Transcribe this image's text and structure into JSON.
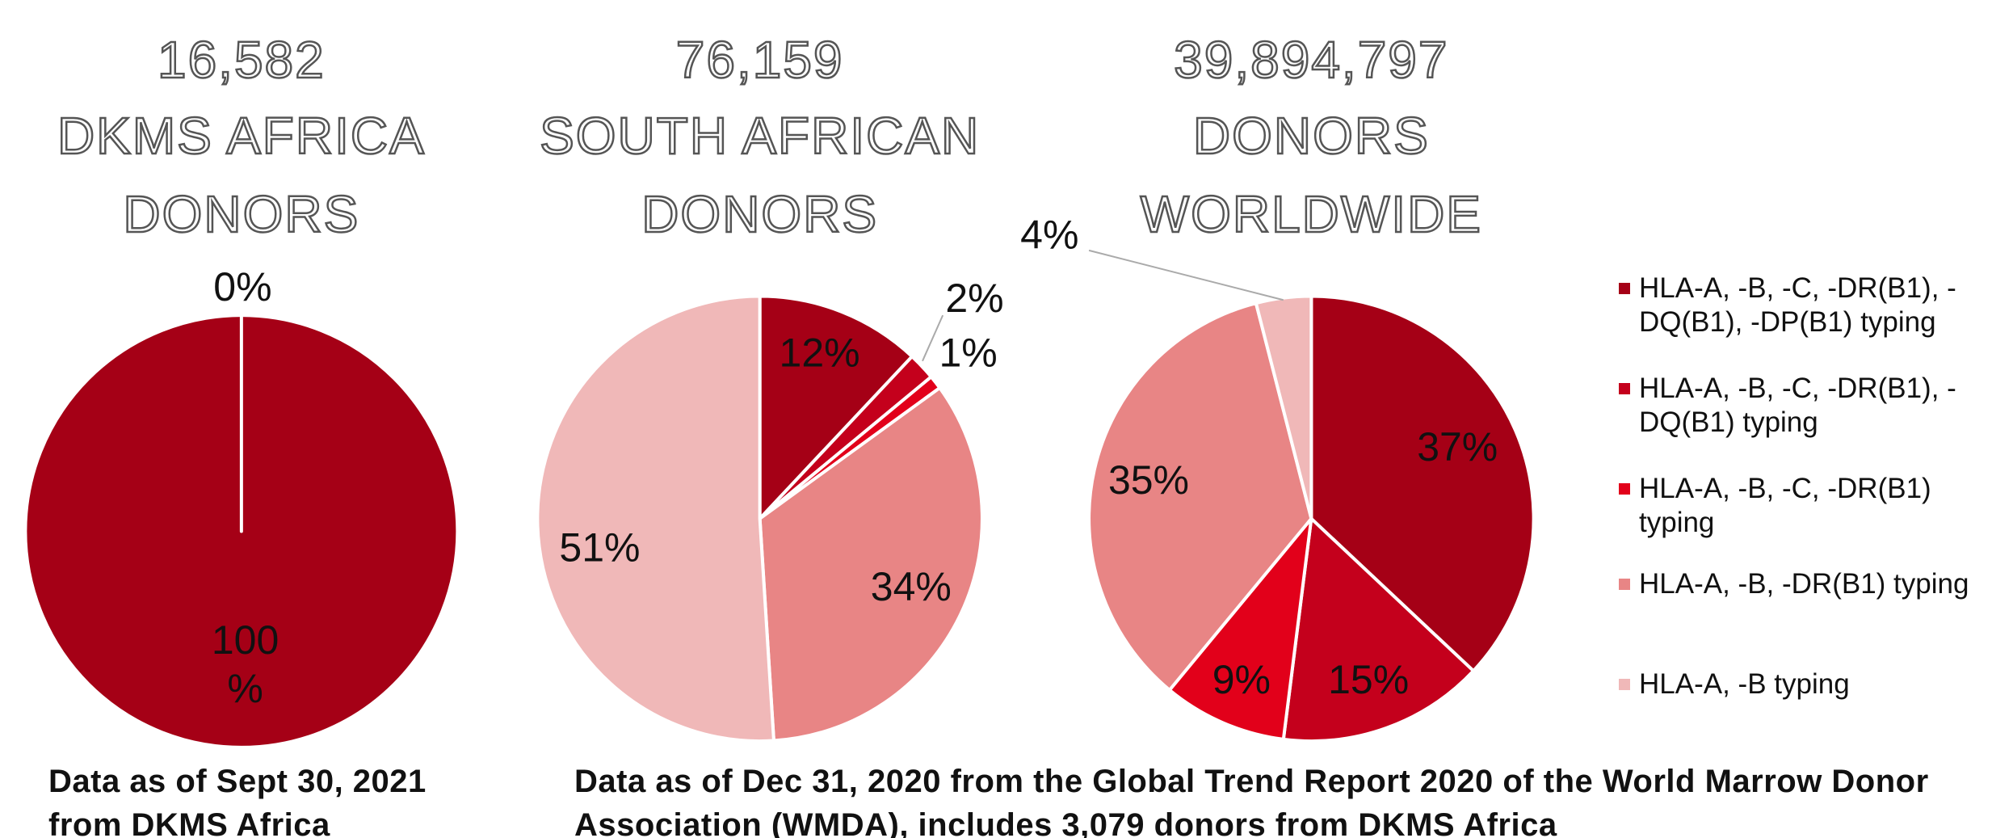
{
  "chart_data": [
    {
      "type": "pie",
      "title": [
        "16,582",
        "DKMS AFRICA",
        "DONORS"
      ],
      "values": [
        100,
        0,
        null,
        null,
        null
      ],
      "value_labels": [
        "100 %",
        "0%",
        null,
        null,
        null
      ]
    },
    {
      "type": "pie",
      "title": [
        "76,159",
        "SOUTH AFRICAN",
        "DONORS"
      ],
      "values": [
        12,
        2,
        1,
        34,
        51
      ],
      "value_labels": [
        "12%",
        "2%",
        "1%",
        "34%",
        "51%"
      ]
    },
    {
      "type": "pie",
      "title": [
        "39,894,797",
        "DONORS",
        "WORLDWIDE"
      ],
      "values": [
        37,
        15,
        9,
        35,
        4
      ],
      "value_labels": [
        "37%",
        "15%",
        "9%",
        "35%",
        "4%"
      ]
    }
  ],
  "legend": {
    "labels": [
      "HLA-A, -B, -C, -DR(B1), -DQ(B1), -DP(B1) typing",
      "HLA-A, -B, -C, -DR(B1), -DQ(B1) typing",
      "HLA-A, -B, -C, -DR(B1) typing",
      "HLA-A, -B, -DR(B1) typing",
      "HLA-A, -B typing"
    ],
    "colors": [
      "#a50016",
      "#c4001c",
      "#e2001a",
      "#e88585",
      "#f0b8b8"
    ]
  },
  "notes": [
    "Data as of Sept 30, 2021 from DKMS Africa",
    "Data as of Dec 31, 2020 from the Global Trend Report 2020 of the World Marrow Donor Association (WMDA), includes 3,079 donors from DKMS Africa"
  ]
}
